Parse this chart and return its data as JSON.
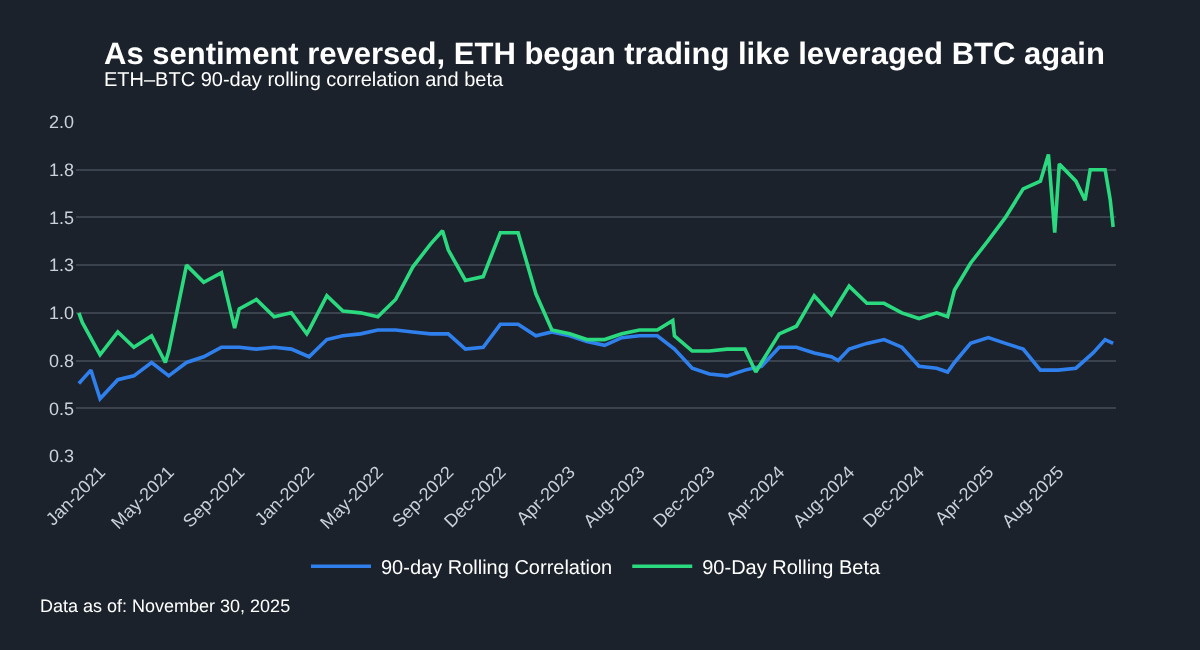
{
  "chart_data": {
    "type": "line",
    "title": "As sentiment reversed, ETH began trading like leveraged BTC again",
    "subtitle": "ETH–BTC 90-day rolling correlation and beta",
    "annotations": [
      "Data as of: November 30, 2025"
    ],
    "xlim": [
      "2020-11-20",
      "2025-11-10"
    ],
    "xticks": [
      {
        "value": "2021-01-01",
        "label": "Jan-2021"
      },
      {
        "value": "2021-05-01",
        "label": "May-2021"
      },
      {
        "value": "2021-09-01",
        "label": "Sep-2021"
      },
      {
        "value": "2022-01-01",
        "label": "Jan-2022"
      },
      {
        "value": "2022-05-01",
        "label": "May-2022"
      },
      {
        "value": "2022-09-01",
        "label": "Sep-2022"
      },
      {
        "value": "2022-12-01",
        "label": "Dec-2022"
      },
      {
        "value": "2023-04-01",
        "label": "Apr-2023"
      },
      {
        "value": "2023-08-01",
        "label": "Aug-2023"
      },
      {
        "value": "2023-12-01",
        "label": "Dec-2023"
      },
      {
        "value": "2024-04-01",
        "label": "Apr-2024"
      },
      {
        "value": "2024-08-01",
        "label": "Aug-2024"
      },
      {
        "value": "2024-12-01",
        "label": "Dec-2024"
      },
      {
        "value": "2025-04-01",
        "label": "Apr-2025"
      },
      {
        "value": "2025-08-01",
        "label": "Aug-2025"
      }
    ],
    "ylim": [
      0.25,
      2.0
    ],
    "yticks": [
      {
        "value": 0.25,
        "label": "0.3"
      },
      {
        "value": 0.5,
        "label": "0.5"
      },
      {
        "value": 0.75,
        "label": "0.8"
      },
      {
        "value": 1.0,
        "label": "1.0"
      },
      {
        "value": 1.25,
        "label": "1.3"
      },
      {
        "value": 1.5,
        "label": "1.5"
      },
      {
        "value": 1.75,
        "label": "1.8"
      },
      {
        "value": 2.0,
        "label": "2.0"
      }
    ],
    "grid": "y",
    "legend": "bottom",
    "marker": "none",
    "line_style": "solid",
    "series": [
      {
        "name": "90-day Rolling Correlation",
        "color": "#2f80ed",
        "x": [
          "2020-11-25",
          "2020-12-01",
          "2020-12-16",
          "2021-01-01",
          "2021-02-01",
          "2021-03-01",
          "2021-04-01",
          "2021-05-01",
          "2021-06-01",
          "2021-07-01",
          "2021-08-01",
          "2021-09-01",
          "2021-10-01",
          "2021-11-01",
          "2021-12-01",
          "2022-01-01",
          "2022-02-01",
          "2022-03-01",
          "2022-04-01",
          "2022-05-01",
          "2022-06-01",
          "2022-07-01",
          "2022-08-01",
          "2022-09-01",
          "2022-10-01",
          "2022-11-01",
          "2022-12-01",
          "2023-01-01",
          "2023-02-01",
          "2023-03-01",
          "2023-04-01",
          "2023-05-01",
          "2023-06-01",
          "2023-07-01",
          "2023-08-01",
          "2023-09-01",
          "2023-10-01",
          "2023-11-01",
          "2023-12-01",
          "2024-01-01",
          "2024-02-01",
          "2024-03-01",
          "2024-04-01",
          "2024-05-01",
          "2024-06-01",
          "2024-07-01",
          "2024-07-13",
          "2024-08-01",
          "2024-09-01",
          "2024-10-01",
          "2024-11-01",
          "2024-12-01",
          "2025-01-01",
          "2025-01-20",
          "2025-02-01",
          "2025-03-01",
          "2025-04-01",
          "2025-05-01",
          "2025-06-01",
          "2025-07-01",
          "2025-08-01",
          "2025-09-01",
          "2025-10-01",
          "2025-10-22",
          "2025-11-05"
        ],
        "values": [
          0.63,
          0.65,
          0.7,
          0.55,
          0.65,
          0.67,
          0.74,
          0.67,
          0.74,
          0.77,
          0.82,
          0.82,
          0.81,
          0.82,
          0.81,
          0.77,
          0.86,
          0.88,
          0.89,
          0.91,
          0.91,
          0.9,
          0.89,
          0.89,
          0.81,
          0.82,
          0.94,
          0.94,
          0.88,
          0.9,
          0.88,
          0.85,
          0.83,
          0.87,
          0.88,
          0.88,
          0.81,
          0.71,
          0.68,
          0.67,
          0.7,
          0.72,
          0.82,
          0.82,
          0.79,
          0.77,
          0.75,
          0.81,
          0.84,
          0.86,
          0.82,
          0.72,
          0.71,
          0.69,
          0.74,
          0.84,
          0.87,
          0.84,
          0.81,
          0.7,
          0.7,
          0.71,
          0.79,
          0.86,
          0.84
        ]
      },
      {
        "name": "90-Day Rolling Beta",
        "color": "#2bd97f",
        "x": [
          "2020-11-25",
          "2020-12-01",
          "2021-01-01",
          "2021-02-01",
          "2021-03-01",
          "2021-04-01",
          "2021-04-25",
          "2021-05-01",
          "2021-06-01",
          "2021-07-01",
          "2021-08-01",
          "2021-08-24",
          "2021-09-01",
          "2021-10-01",
          "2021-11-01",
          "2021-12-01",
          "2021-12-28",
          "2022-01-01",
          "2022-02-01",
          "2022-03-01",
          "2022-04-01",
          "2022-05-01",
          "2022-06-01",
          "2022-07-01",
          "2022-08-01",
          "2022-08-22",
          "2022-09-01",
          "2022-10-01",
          "2022-11-01",
          "2022-12-01",
          "2023-01-01",
          "2023-02-01",
          "2023-03-01",
          "2023-04-01",
          "2023-05-01",
          "2023-06-01",
          "2023-07-01",
          "2023-08-01",
          "2023-09-01",
          "2023-09-28",
          "2023-10-01",
          "2023-11-01",
          "2023-12-01",
          "2024-01-01",
          "2024-02-01",
          "2024-02-20",
          "2024-03-01",
          "2024-04-01",
          "2024-05-01",
          "2024-06-01",
          "2024-07-01",
          "2024-08-01",
          "2024-09-01",
          "2024-10-01",
          "2024-11-01",
          "2024-12-01",
          "2025-01-01",
          "2025-01-20",
          "2025-02-01",
          "2025-03-01",
          "2025-04-01",
          "2025-05-01",
          "2025-06-01",
          "2025-07-01",
          "2025-07-15",
          "2025-07-26",
          "2025-08-03",
          "2025-09-01",
          "2025-09-17",
          "2025-09-26",
          "2025-10-22",
          "2025-10-31",
          "2025-11-05"
        ],
        "values": [
          1.0,
          0.95,
          0.78,
          0.9,
          0.82,
          0.88,
          0.74,
          0.8,
          1.25,
          1.16,
          1.21,
          0.92,
          1.02,
          1.07,
          0.98,
          1.0,
          0.89,
          0.91,
          1.09,
          1.01,
          1.0,
          0.98,
          1.07,
          1.24,
          1.36,
          1.43,
          1.33,
          1.17,
          1.19,
          1.42,
          1.42,
          1.1,
          0.91,
          0.89,
          0.86,
          0.86,
          0.89,
          0.91,
          0.91,
          0.96,
          0.88,
          0.8,
          0.8,
          0.81,
          0.81,
          0.69,
          0.74,
          0.89,
          0.93,
          1.09,
          0.99,
          1.14,
          1.05,
          1.05,
          1.0,
          0.97,
          1.0,
          0.98,
          1.12,
          1.26,
          1.38,
          1.5,
          1.65,
          1.69,
          1.83,
          1.42,
          1.78,
          1.69,
          1.59,
          1.75,
          1.75,
          1.59,
          1.45
        ]
      }
    ]
  }
}
